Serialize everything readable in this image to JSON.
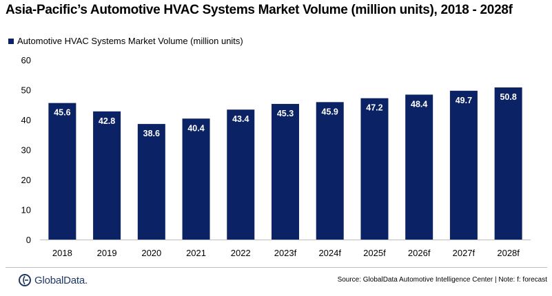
{
  "title": "Asia-Pacific’s Automotive HVAC Systems Market Volume (million units), 2018 - 2028f",
  "legend_label": "Automotive HVAC Systems Market Volume (million units)",
  "logo_text": "GlobalData.",
  "source": "Source:  GlobalData Automotive Intelligence Center | Note: f: forecast",
  "colors": {
    "bar": "#0b2265",
    "label": "#ffffff",
    "axis": "#bfbfbf",
    "logo": "#1f3864"
  },
  "chart_data": {
    "type": "bar",
    "categories": [
      "2018",
      "2019",
      "2020",
      "2021",
      "2022",
      "2023f",
      "2024f",
      "2025f",
      "2026f",
      "2027f",
      "2028f"
    ],
    "series": [
      {
        "name": "Automotive HVAC Systems Market Volume (million units)",
        "values": [
          45.6,
          42.8,
          38.6,
          40.4,
          43.4,
          45.3,
          45.9,
          47.2,
          48.4,
          49.7,
          50.8
        ]
      }
    ],
    "ylim": [
      0,
      60
    ],
    "yticks": [
      "0",
      "10",
      "20",
      "30",
      "40",
      "50",
      "60"
    ],
    "grid": false,
    "legend_position": "top-left",
    "data_labels": [
      "45.6",
      "42.8",
      "38.6",
      "40.4",
      "43.4",
      "45.3",
      "45.9",
      "47.2",
      "48.4",
      "49.7",
      "50.8"
    ]
  }
}
